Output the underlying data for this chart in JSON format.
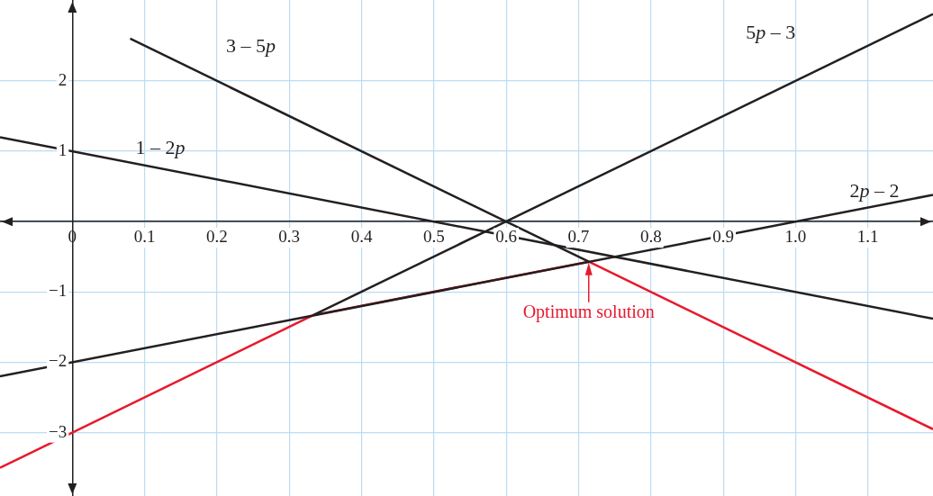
{
  "chart_data": {
    "type": "line",
    "series": [
      {
        "name": "3 – 5p",
        "color": "#231f20",
        "x": [
          0.08,
          0.714
        ],
        "values": [
          2.6,
          -0.57
        ]
      },
      {
        "name": "1 – 2p",
        "color": "#231f20",
        "x": [
          -0.1,
          1.19
        ],
        "values": [
          1.2,
          -1.38
        ]
      },
      {
        "name": "5p – 3",
        "color": "#231f20",
        "x": [
          0.333,
          1.19
        ],
        "values": [
          -1.33,
          2.95
        ]
      },
      {
        "name": "2p – 2",
        "color": "#231f20",
        "x": [
          -0.1,
          1.19
        ],
        "values": [
          -2.2,
          0.38
        ]
      },
      {
        "color": "#e8192c",
        "x": [
          -0.1,
          0.333,
          0.714,
          1.19
        ],
        "values": [
          -3.5,
          -1.33,
          -0.57,
          -2.95
        ]
      }
    ],
    "xlim": [
      -0.1,
      1.19
    ],
    "ylim": [
      -3.9,
      3.15
    ],
    "xticks": [
      {
        "value": 0,
        "label": "0"
      },
      0.1,
      0.2,
      0.3,
      0.4,
      0.5,
      0.6,
      0.7,
      0.8,
      0.9,
      {
        "value": 1,
        "label": "1.0"
      },
      1.1
    ],
    "yticks": [
      {
        "value": -3,
        "label": "−3"
      },
      {
        "value": -2,
        "label": "−2"
      },
      {
        "value": -1,
        "label": "−1"
      },
      {
        "value": 0,
        "label": null
      },
      1,
      2
    ],
    "grid": true,
    "marker": "none",
    "line_style": "solid",
    "legend": false,
    "annotations": [
      {
        "text": "Optimum solution",
        "x": 0.714,
        "y": -0.57
      }
    ]
  }
}
